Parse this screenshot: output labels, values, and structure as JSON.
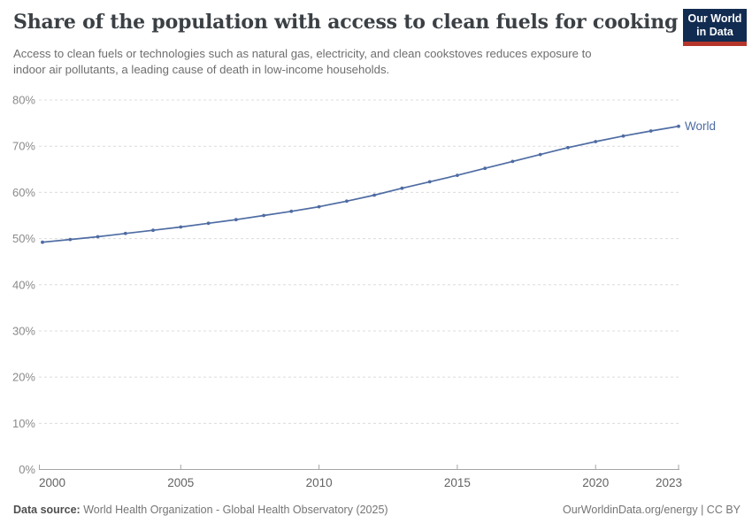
{
  "header": {
    "title": "Share of the population with access to clean fuels for cooking",
    "subtitle_line1": "Access to clean fuels or technologies such as natural gas, electricity, and clean cookstoves reduces exposure to",
    "subtitle_line2": "indoor air pollutants, a leading cause of death in low-income households.",
    "logo": {
      "line1": "Our World",
      "line2": "in Data"
    }
  },
  "chart_data": {
    "type": "line",
    "title": "Share of the population with access to clean fuels for cooking",
    "x": [
      2000,
      2001,
      2002,
      2003,
      2004,
      2005,
      2006,
      2007,
      2008,
      2009,
      2010,
      2011,
      2012,
      2013,
      2014,
      2015,
      2016,
      2017,
      2018,
      2019,
      2020,
      2021,
      2022,
      2023
    ],
    "series": [
      {
        "name": "World",
        "color": "#4e6ca3",
        "values": [
          49.2,
          49.8,
          50.4,
          51.1,
          51.8,
          52.5,
          53.3,
          54.1,
          55.0,
          55.9,
          56.9,
          58.1,
          59.4,
          60.9,
          62.3,
          63.7,
          65.2,
          66.7,
          68.2,
          69.7,
          71.0,
          72.2,
          73.3,
          74.3
        ]
      }
    ],
    "xticks": [
      2000,
      2005,
      2010,
      2015,
      2020,
      2023
    ],
    "yticks": [
      0,
      10,
      20,
      30,
      40,
      50,
      60,
      70,
      80
    ],
    "xlim": [
      2000,
      2023
    ],
    "ylim": [
      0,
      80
    ],
    "y_suffix": "%",
    "xlabel": "",
    "ylabel": "",
    "grid": "horizontal-dashed",
    "legend": "end-of-line-label",
    "end_label": "World",
    "marker": "dot-every-year"
  },
  "footer": {
    "datasource_label": "Data source:",
    "datasource_value": " World Health Organization - Global Health Observatory (2025)",
    "credit_link": "OurWorldinData.org/energy",
    "credit_rest": " | CC BY"
  },
  "colors": {
    "line": "#4e6ca3",
    "grid": "#dcdcdc",
    "axis": "#a5a5a5",
    "y_label": "#8a8a8a",
    "x_label": "#636363",
    "title": "#3b4045",
    "subtitle": "#6e6e6e",
    "logo_bg": "#122c51",
    "logo_red": "#b5352b",
    "footer": "#757575"
  }
}
